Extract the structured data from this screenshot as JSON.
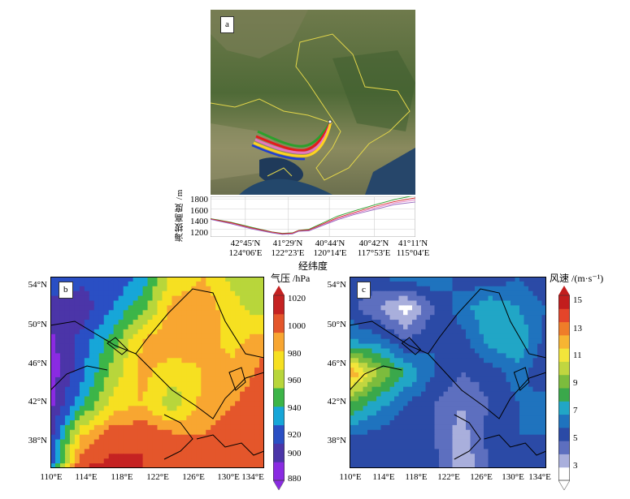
{
  "chart_data": [
    {
      "panel": "a",
      "type": "line",
      "ylabel": "海拔高度 /m",
      "xlabel": "经纬度",
      "yticks": [
        1200,
        1400,
        1600,
        1800
      ],
      "ylim": [
        1050,
        1850
      ],
      "xticks": [
        {
          "lat": "42°45′N",
          "lon": "124°06′E"
        },
        {
          "lat": "41°29′N",
          "lon": "122°23′E"
        },
        {
          "lat": "40°44′N",
          "lon": "120°14′E"
        },
        {
          "lat": "40°42′N",
          "lon": "117°53′E"
        },
        {
          "lat": "41°11′N",
          "lon": "115°04′E"
        }
      ],
      "x": [
        0,
        0.1,
        0.2,
        0.3,
        0.35,
        0.4,
        0.43,
        0.48,
        0.55,
        0.62,
        0.7,
        0.8,
        0.9,
        1.0
      ],
      "series": [
        {
          "color": "#2ca02c",
          "values": [
            1410,
            1340,
            1240,
            1150,
            1120,
            1130,
            1180,
            1200,
            1330,
            1460,
            1560,
            1680,
            1790,
            1870
          ]
        },
        {
          "color": "#e377c2",
          "values": [
            1400,
            1320,
            1220,
            1140,
            1110,
            1120,
            1170,
            1180,
            1290,
            1410,
            1510,
            1620,
            1720,
            1780
          ]
        },
        {
          "color": "#d62728",
          "values": [
            1405,
            1330,
            1230,
            1145,
            1115,
            1125,
            1175,
            1190,
            1310,
            1430,
            1530,
            1650,
            1750,
            1820
          ]
        },
        {
          "color": "#9467bd",
          "values": [
            1395,
            1310,
            1210,
            1130,
            1100,
            1110,
            1160,
            1170,
            1280,
            1390,
            1490,
            1590,
            1690,
            1740
          ]
        }
      ]
    },
    {
      "panel": "b",
      "type": "heatmap",
      "colorbar_title": "气压 /hPa",
      "colorbar_ticks": [
        880,
        900,
        920,
        940,
        960,
        980,
        1000,
        1020
      ],
      "colors": [
        "#8a2be2",
        "#4b35a8",
        "#2a4fc4",
        "#17a6d8",
        "#3cb548",
        "#b8d63b",
        "#f6e021",
        "#f8a631",
        "#e4562b",
        "#c52222"
      ],
      "xticks": [
        "110°E",
        "114°E",
        "118°E",
        "122°E",
        "126°E",
        "130°E",
        "134°E"
      ],
      "yticks": [
        "54°N",
        "50°N",
        "46°N",
        "42°N",
        "38°N"
      ],
      "field": [
        [
          920,
          915,
          910,
          930,
          975,
          985,
          965,
          955
        ],
        [
          905,
          900,
          925,
          950,
          990,
          995,
          975,
          960
        ],
        [
          890,
          915,
          945,
          985,
          1000,
          990,
          980,
          995
        ],
        [
          885,
          920,
          960,
          990,
          975,
          985,
          990,
          1005
        ],
        [
          890,
          935,
          975,
          985,
          960,
          990,
          1000,
          1010
        ],
        [
          905,
          985,
          1010,
          1015,
          1005,
          1000,
          1010,
          1015
        ],
        [
          920,
          1015,
          1020,
          1015,
          1005,
          1010,
          1015,
          1015
        ]
      ]
    },
    {
      "panel": "c",
      "type": "heatmap",
      "colorbar_title": "风速 /(m·s⁻¹)",
      "colorbar_ticks": [
        3,
        5,
        7,
        9,
        11,
        13,
        15
      ],
      "colors": [
        "#ffffff",
        "#a9afdc",
        "#5d6fbf",
        "#2b4aa6",
        "#1f73be",
        "#21a6c6",
        "#3aa84b",
        "#7cbc3d",
        "#c1d640",
        "#f3e53a",
        "#f7b532",
        "#ef7d29",
        "#e4452a",
        "#c21d1d"
      ],
      "xticks": [
        "110°E",
        "114°E",
        "118°E",
        "122°E",
        "126°E",
        "130°E",
        "134°E"
      ],
      "yticks": [
        "54°N",
        "50°N",
        "46°N",
        "42°N",
        "38°N"
      ],
      "field": [
        [
          5.0,
          6.0,
          6.5,
          7.0,
          5.5,
          5.0,
          6.0,
          5.0
        ],
        [
          5.5,
          4.0,
          2.5,
          5.0,
          6.5,
          8.0,
          7.0,
          6.0
        ],
        [
          7.0,
          6.5,
          5.0,
          6.0,
          5.5,
          7.5,
          8.0,
          5.5
        ],
        [
          13.0,
          10.0,
          8.0,
          6.0,
          5.0,
          5.5,
          6.5,
          5.0
        ],
        [
          9.0,
          7.5,
          6.0,
          5.0,
          4.0,
          5.0,
          6.0,
          6.5
        ],
        [
          6.0,
          5.5,
          5.0,
          5.0,
          3.5,
          5.5,
          6.0,
          6.0
        ],
        [
          5.0,
          5.0,
          5.5,
          5.5,
          3.0,
          5.0,
          5.5,
          5.5
        ]
      ]
    }
  ]
}
